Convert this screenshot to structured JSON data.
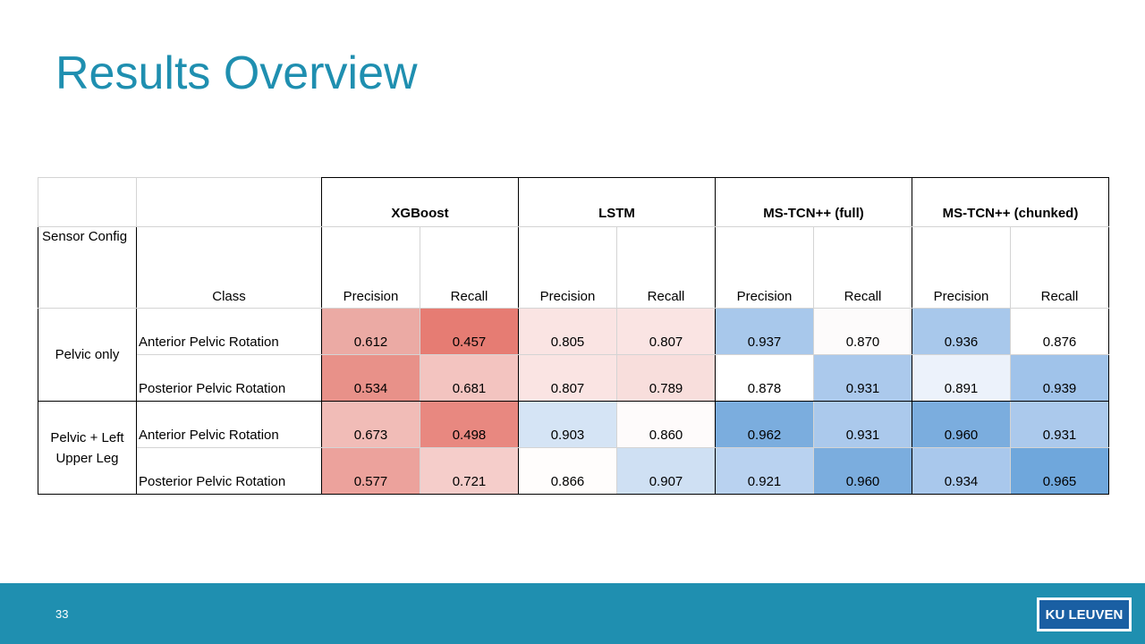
{
  "slide": {
    "title": "Results Overview",
    "page_number": "33",
    "logo_text": "KU LEUVEN",
    "colors": {
      "accent": "#1f8fb0",
      "footer": "#1f8fb0",
      "logo_bg": "#1a5fa3"
    }
  },
  "table": {
    "models": [
      "XGBoost",
      "LSTM",
      "MS-TCN++ (full)",
      "MS-TCN++ (chunked)"
    ],
    "metrics": [
      "Precision",
      "Recall"
    ],
    "sensor_config_header": "Sensor Config",
    "class_header": "Class",
    "groups": [
      {
        "sensor": "Pelvic only",
        "rows": [
          {
            "class": "Anterior Pelvic Rotation",
            "values": [
              "0.612",
              "0.457",
              "0.805",
              "0.807",
              "0.937",
              "0.870",
              "0.936",
              "0.876"
            ],
            "colors": [
              "#ebaaa4",
              "#e67c73",
              "#fae4e3",
              "#fae4e3",
              "#a8c8eb",
              "#fdfbfb",
              "#a8c8eb",
              "#ffffff"
            ]
          },
          {
            "class": "Posterior Pelvic Rotation",
            "values": [
              "0.534",
              "0.681",
              "0.807",
              "0.789",
              "0.878",
              "0.931",
              "0.891",
              "0.939"
            ],
            "colors": [
              "#e89189",
              "#f3c4c0",
              "#fae4e3",
              "#f8dedc",
              "#ffffff",
              "#abc9ec",
              "#ecf2fb",
              "#a0c3ea"
            ]
          }
        ]
      },
      {
        "sensor": "Pelvic + Left Upper Leg",
        "rows": [
          {
            "class": "Anterior Pelvic Rotation",
            "values": [
              "0.673",
              "0.498",
              "0.903",
              "0.860",
              "0.962",
              "0.931",
              "0.960",
              "0.931"
            ],
            "colors": [
              "#f1bcb7",
              "#e88880",
              "#d5e4f5",
              "#fefbfb",
              "#7badde",
              "#abc9ec",
              "#7badde",
              "#abc9ec"
            ]
          },
          {
            "class": "Posterior Pelvic Rotation",
            "values": [
              "0.577",
              "0.721",
              "0.866",
              "0.907",
              "0.921",
              "0.960",
              "0.934",
              "0.965"
            ],
            "colors": [
              "#eca29c",
              "#f5cdca",
              "#fffdfc",
              "#cfe0f3",
              "#b9d2f0",
              "#7badde",
              "#a9c8ec",
              "#6fa7dc"
            ]
          }
        ]
      }
    ]
  }
}
